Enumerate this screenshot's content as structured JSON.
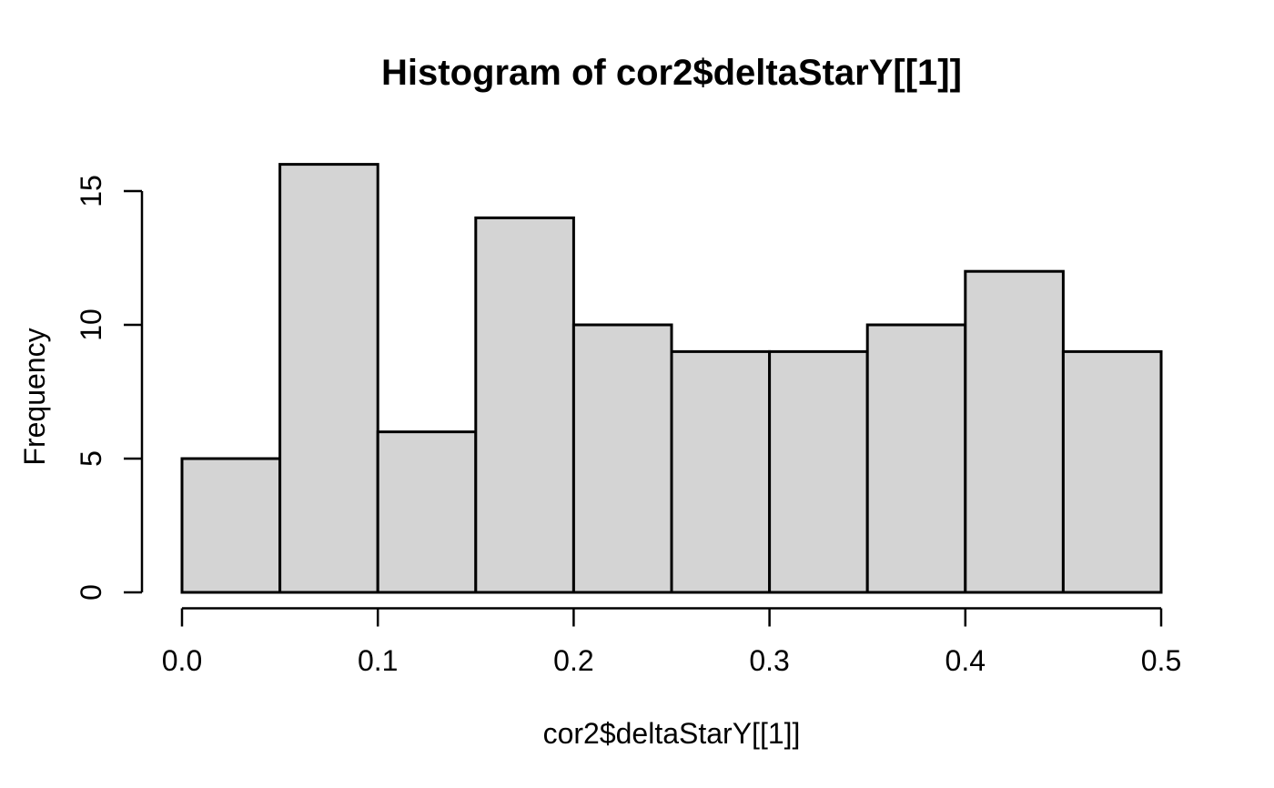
{
  "colors": {
    "background": "#ffffff",
    "bar_fill": "#d4d4d4",
    "bar_stroke": "#000000",
    "axis": "#000000",
    "text": "#000000"
  },
  "chart_data": {
    "type": "bar",
    "subtype": "histogram",
    "title": "Histogram of cor2$deltaStarY[[1]]",
    "xlabel": "cor2$deltaStarY[[1]]",
    "ylabel": "Frequency",
    "bin_edges": [
      0.0,
      0.05,
      0.1,
      0.15,
      0.2,
      0.25,
      0.3,
      0.35,
      0.4,
      0.45,
      0.5
    ],
    "counts": [
      5,
      16,
      6,
      14,
      10,
      9,
      9,
      10,
      12,
      9
    ],
    "xlim": [
      0.0,
      0.5
    ],
    "ylim": [
      0,
      16
    ],
    "x_ticks": [
      {
        "value": 0.0,
        "label": "0.0"
      },
      {
        "value": 0.1,
        "label": "0.1"
      },
      {
        "value": 0.2,
        "label": "0.2"
      },
      {
        "value": 0.3,
        "label": "0.3"
      },
      {
        "value": 0.4,
        "label": "0.4"
      },
      {
        "value": 0.5,
        "label": "0.5"
      }
    ],
    "y_ticks": [
      {
        "value": 0,
        "label": "0"
      },
      {
        "value": 5,
        "label": "5"
      },
      {
        "value": 10,
        "label": "10"
      },
      {
        "value": 15,
        "label": "15"
      }
    ],
    "grid": false,
    "legend": "none"
  }
}
